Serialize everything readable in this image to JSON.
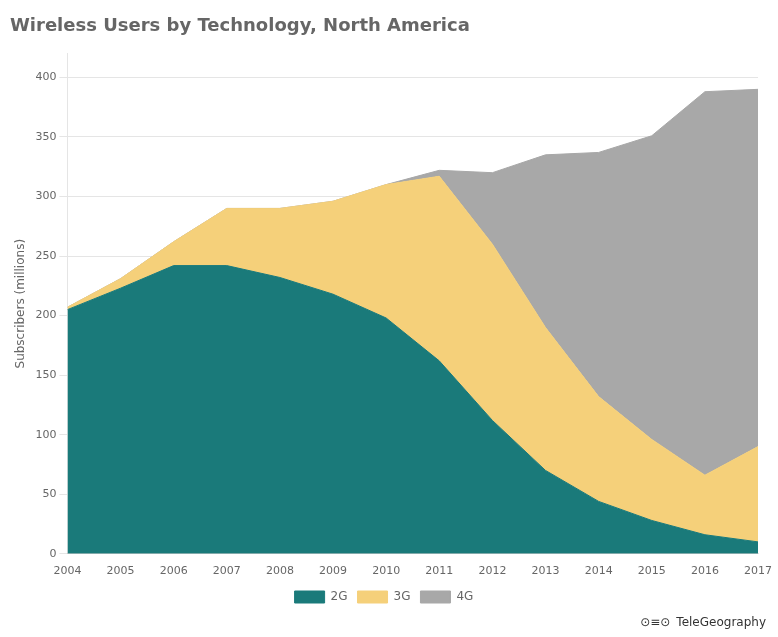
{
  "chart_data": {
    "type": "area",
    "stacked": true,
    "title": "Wireless Users by Technology, North America",
    "ylabel": "Subscribers (millions)",
    "x": [
      2004,
      2005,
      2006,
      2007,
      2008,
      2009,
      2010,
      2011,
      2012,
      2013,
      2014,
      2015,
      2016,
      2017
    ],
    "series": [
      {
        "name": "2G",
        "color": "#1a7a7a",
        "values": [
          205,
          223,
          242,
          242,
          232,
          218,
          198,
          162,
          112,
          70,
          44,
          28,
          16,
          10
        ]
      },
      {
        "name": "3G",
        "color": "#f5d07a",
        "values": [
          2,
          8,
          20,
          48,
          58,
          78,
          112,
          155,
          148,
          120,
          88,
          68,
          50,
          80
        ]
      },
      {
        "name": "4G",
        "color": "#a8a8a8",
        "values": [
          0,
          0,
          0,
          0,
          0,
          0,
          0,
          5,
          60,
          145,
          205,
          255,
          322,
          300
        ]
      }
    ],
    "xlim": [
      2004,
      2017
    ],
    "xticks": [
      2004,
      2005,
      2006,
      2007,
      2008,
      2009,
      2010,
      2011,
      2012,
      2013,
      2014,
      2015,
      2016,
      2017
    ],
    "ylim": [
      0,
      420
    ],
    "yticks": [
      0,
      50,
      100,
      150,
      200,
      250,
      300,
      350,
      400
    ],
    "grid": true,
    "legend": "bottom",
    "annotations": [
      "⊙≡⊙",
      "TeleGeography"
    ]
  }
}
